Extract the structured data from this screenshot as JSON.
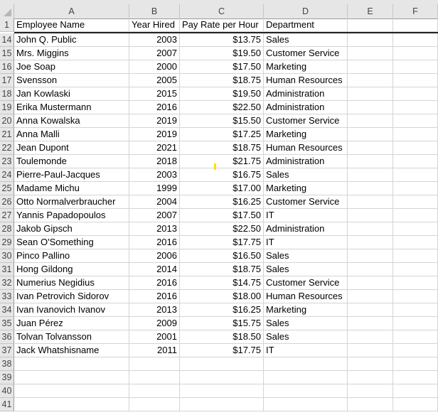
{
  "columns": [
    "A",
    "B",
    "C",
    "D",
    "E",
    "F"
  ],
  "header_row": {
    "number": "1",
    "cells": [
      "Employee Name",
      "Year Hired",
      "Pay Rate per Hour",
      "Department",
      "",
      ""
    ]
  },
  "rows": [
    {
      "number": "14",
      "cells": [
        "John Q. Public",
        "2003",
        "$13.75",
        "Sales"
      ]
    },
    {
      "number": "15",
      "cells": [
        "Mrs. Miggins",
        "2007",
        "$19.50",
        "Customer Service"
      ]
    },
    {
      "number": "16",
      "cells": [
        "Joe Soap",
        "2000",
        "$17.50",
        "Marketing"
      ]
    },
    {
      "number": "17",
      "cells": [
        "Svensson",
        "2005",
        "$18.75",
        "Human Resources"
      ]
    },
    {
      "number": "18",
      "cells": [
        "Jan Kowlaski",
        "2015",
        "$19.50",
        "Administration"
      ]
    },
    {
      "number": "19",
      "cells": [
        "Erika Mustermann",
        "2016",
        "$22.50",
        "Administration"
      ]
    },
    {
      "number": "20",
      "cells": [
        "Anna Kowalska",
        "2019",
        "$15.50",
        "Customer Service"
      ]
    },
    {
      "number": "21",
      "cells": [
        "Anna Malli",
        "2019",
        "$17.25",
        "Marketing"
      ]
    },
    {
      "number": "22",
      "cells": [
        "Jean Dupont",
        "2021",
        "$18.75",
        "Human Resources"
      ]
    },
    {
      "number": "23",
      "cells": [
        "Toulemonde",
        "2018",
        "$21.75",
        "Administration"
      ]
    },
    {
      "number": "24",
      "cells": [
        "Pierre-Paul-Jacques",
        "2003",
        "$16.75",
        "Sales"
      ]
    },
    {
      "number": "25",
      "cells": [
        "Madame Michu",
        "1999",
        "$17.00",
        "Marketing"
      ]
    },
    {
      "number": "26",
      "cells": [
        "Otto Normalverbraucher",
        "2004",
        "$16.25",
        "Customer Service"
      ]
    },
    {
      "number": "27",
      "cells": [
        "Yannis Papadopoulos",
        "2007",
        "$17.50",
        "IT"
      ]
    },
    {
      "number": "28",
      "cells": [
        "Jakob Gipsch",
        "2013",
        "$22.50",
        "Administration"
      ]
    },
    {
      "number": "29",
      "cells": [
        "Sean O'Something",
        "2016",
        "$17.75",
        "IT"
      ]
    },
    {
      "number": "30",
      "cells": [
        "Pinco Pallino",
        "2006",
        "$16.50",
        "Sales"
      ]
    },
    {
      "number": "31",
      "cells": [
        "Hong Gildong",
        "2014",
        "$18.75",
        "Sales"
      ]
    },
    {
      "number": "32",
      "cells": [
        "Numerius Negidius",
        "2016",
        "$14.75",
        "Customer Service"
      ]
    },
    {
      "number": "33",
      "cells": [
        "Ivan Petrovich Sidorov",
        "2016",
        "$18.00",
        "Human Resources"
      ]
    },
    {
      "number": "34",
      "cells": [
        "Ivan Ivanovich Ivanov",
        "2013",
        "$16.25",
        "Marketing"
      ]
    },
    {
      "number": "35",
      "cells": [
        "Juan Pérez",
        "2009",
        "$15.75",
        "Sales"
      ]
    },
    {
      "number": "36",
      "cells": [
        "Tolvan Tolvansson",
        "2001",
        "$18.50",
        "Sales"
      ]
    },
    {
      "number": "37",
      "cells": [
        "Jack Whatshisname",
        "2011",
        "$17.75",
        "IT"
      ]
    },
    {
      "number": "38",
      "cells": [
        "",
        "",
        "",
        ""
      ]
    },
    {
      "number": "39",
      "cells": [
        "",
        "",
        "",
        ""
      ]
    },
    {
      "number": "40",
      "cells": [
        "",
        "",
        "",
        ""
      ]
    },
    {
      "number": "41",
      "cells": [
        "",
        "",
        "",
        ""
      ]
    }
  ]
}
